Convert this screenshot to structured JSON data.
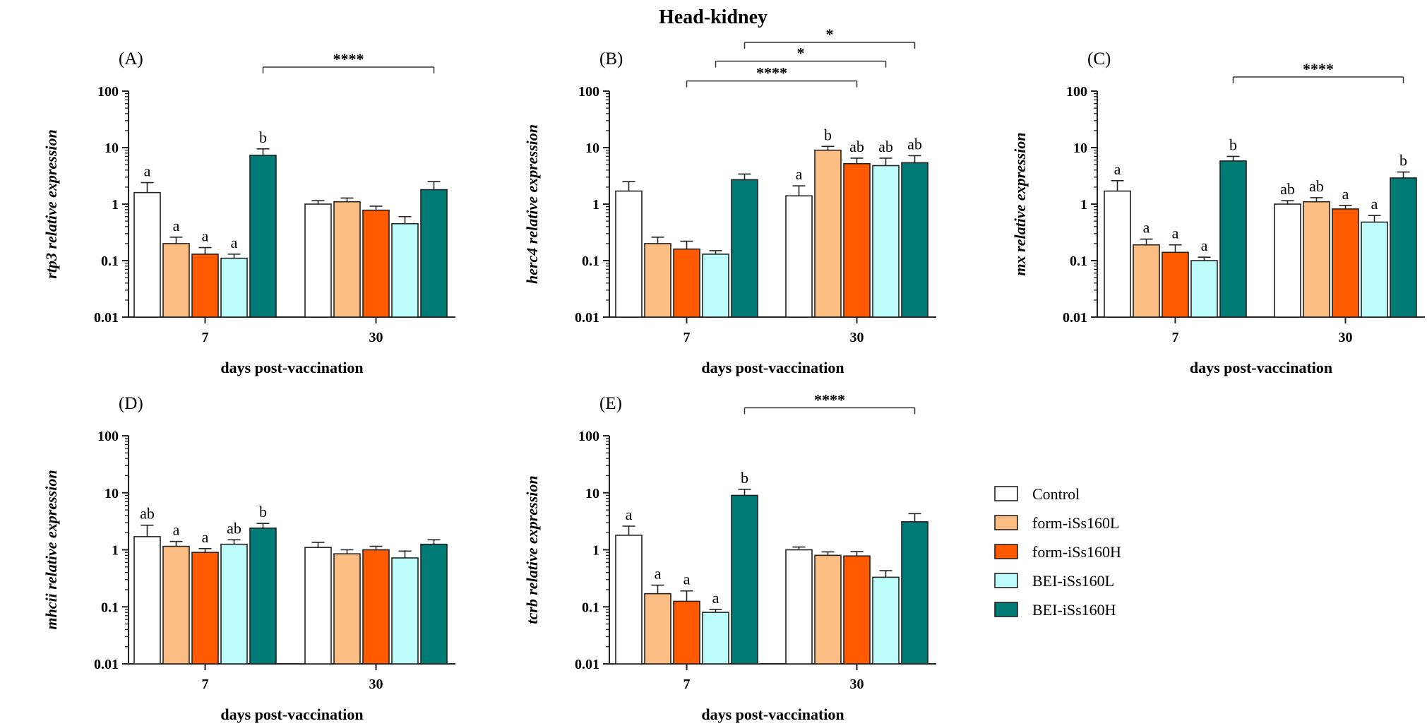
{
  "title": "Head-kidney",
  "legend": [
    {
      "label": "Control",
      "color": "#ffffff"
    },
    {
      "label": "form-iSs160L",
      "color": "#fbbd82"
    },
    {
      "label": "form-iSs160H",
      "color": "#ff5a00"
    },
    {
      "label": "BEI-iSs160L",
      "color": "#bdfdfb"
    },
    {
      "label": "BEI-iSs160H",
      "color": "#007a74"
    }
  ],
  "chart_data": [
    {
      "type": "bar",
      "panel": "(A)",
      "gene": "rtp3",
      "ylabel_rest": " relative expression",
      "xlabel": "days post-vaccination",
      "categories": [
        "7",
        "30"
      ],
      "yscale": "log",
      "ylim": [
        0.01,
        100
      ],
      "yticks": [
        "0.01",
        "0.1",
        "1",
        "10",
        "100"
      ],
      "series": [
        {
          "name": "Control",
          "values": [
            1.6,
            1.0
          ],
          "err_top": [
            2.4,
            1.15
          ],
          "letters": [
            "a",
            ""
          ]
        },
        {
          "name": "form-iSs160L",
          "values": [
            0.2,
            1.1
          ],
          "err_top": [
            0.26,
            1.28
          ],
          "letters": [
            "a",
            ""
          ]
        },
        {
          "name": "form-iSs160H",
          "values": [
            0.13,
            0.78
          ],
          "err_top": [
            0.17,
            0.92
          ],
          "letters": [
            "a",
            ""
          ]
        },
        {
          "name": "BEI-iSs160L",
          "values": [
            0.11,
            0.45
          ],
          "err_top": [
            0.13,
            0.6
          ],
          "letters": [
            "a",
            ""
          ]
        },
        {
          "name": "BEI-iSs160H",
          "values": [
            7.3,
            1.8
          ],
          "err_top": [
            9.5,
            2.5
          ],
          "letters": [
            "b",
            ""
          ]
        }
      ],
      "significance": [
        {
          "label": "****",
          "from": [
            0,
            4
          ],
          "to": [
            1,
            4
          ],
          "level": 0.7
        }
      ]
    },
    {
      "type": "bar",
      "panel": "(B)",
      "gene": "herc4",
      "ylabel_rest": " relative expression",
      "xlabel": "days post-vaccination",
      "categories": [
        "7",
        "30"
      ],
      "yscale": "log",
      "ylim": [
        0.01,
        100
      ],
      "yticks": [
        "0.01",
        "0.1",
        "1",
        "10",
        "100"
      ],
      "series": [
        {
          "name": "Control",
          "values": [
            1.7,
            1.4
          ],
          "err_top": [
            2.5,
            2.1
          ],
          "letters": [
            "",
            "a"
          ]
        },
        {
          "name": "form-iSs160L",
          "values": [
            0.2,
            9.0
          ],
          "err_top": [
            0.26,
            10.5
          ],
          "letters": [
            "",
            "b"
          ]
        },
        {
          "name": "form-iSs160H",
          "values": [
            0.16,
            5.2
          ],
          "err_top": [
            0.22,
            6.5
          ],
          "letters": [
            "",
            "ab"
          ]
        },
        {
          "name": "BEI-iSs160L",
          "values": [
            0.13,
            4.8
          ],
          "err_top": [
            0.15,
            6.5
          ],
          "letters": [
            "",
            "ab"
          ]
        },
        {
          "name": "BEI-iSs160H",
          "values": [
            2.7,
            5.4
          ],
          "err_top": [
            3.4,
            7.2
          ],
          "letters": [
            "",
            "ab"
          ]
        }
      ],
      "significance": [
        {
          "label": "*",
          "from": [
            0,
            4
          ],
          "to": [
            1,
            4
          ],
          "level": 1.2
        },
        {
          "label": "*",
          "from": [
            0,
            3
          ],
          "to": [
            1,
            3
          ],
          "level": 0.82
        },
        {
          "label": "****",
          "from": [
            0,
            2
          ],
          "to": [
            1,
            2
          ],
          "level": 0.42
        }
      ]
    },
    {
      "type": "bar",
      "panel": "(C)",
      "gene": "mx",
      "ylabel_rest": " relative expression",
      "xlabel": "days post-vaccination",
      "categories": [
        "7",
        "30"
      ],
      "yscale": "log",
      "ylim": [
        0.01,
        100
      ],
      "yticks": [
        "0.01",
        "0.1",
        "1",
        "10",
        "100"
      ],
      "series": [
        {
          "name": "Control",
          "values": [
            1.7,
            1.0
          ],
          "err_top": [
            2.6,
            1.15
          ],
          "letters": [
            "a",
            "ab"
          ]
        },
        {
          "name": "form-iSs160L",
          "values": [
            0.19,
            1.1
          ],
          "err_top": [
            0.24,
            1.3
          ],
          "letters": [
            "a",
            "ab"
          ]
        },
        {
          "name": "form-iSs160H",
          "values": [
            0.14,
            0.82
          ],
          "err_top": [
            0.19,
            0.95
          ],
          "letters": [
            "a",
            "a"
          ]
        },
        {
          "name": "BEI-iSs160L",
          "values": [
            0.1,
            0.48
          ],
          "err_top": [
            0.115,
            0.63
          ],
          "letters": [
            "a",
            "a"
          ]
        },
        {
          "name": "BEI-iSs160H",
          "values": [
            5.8,
            2.9
          ],
          "err_top": [
            7.0,
            3.7
          ],
          "letters": [
            "b",
            "b"
          ]
        }
      ],
      "significance": [
        {
          "label": "****",
          "from": [
            0,
            4
          ],
          "to": [
            1,
            4
          ],
          "level": 0.5
        }
      ]
    },
    {
      "type": "bar",
      "panel": "(D)",
      "gene": "mhcii",
      "ylabel_rest": " relative expression",
      "xlabel": "days post-vaccination",
      "categories": [
        "7",
        "30"
      ],
      "yscale": "log",
      "ylim": [
        0.01,
        100
      ],
      "yticks": [
        "0.01",
        "0.1",
        "1",
        "10",
        "100"
      ],
      "series": [
        {
          "name": "Control",
          "values": [
            1.7,
            1.1
          ],
          "err_top": [
            2.7,
            1.35
          ],
          "letters": [
            "ab",
            ""
          ]
        },
        {
          "name": "form-iSs160L",
          "values": [
            1.15,
            0.85
          ],
          "err_top": [
            1.4,
            1.0
          ],
          "letters": [
            "a",
            ""
          ]
        },
        {
          "name": "form-iSs160H",
          "values": [
            0.9,
            1.0
          ],
          "err_top": [
            1.05,
            1.15
          ],
          "letters": [
            "a",
            ""
          ]
        },
        {
          "name": "BEI-iSs160L",
          "values": [
            1.25,
            0.72
          ],
          "err_top": [
            1.5,
            0.95
          ],
          "letters": [
            "ab",
            ""
          ]
        },
        {
          "name": "BEI-iSs160H",
          "values": [
            2.4,
            1.25
          ],
          "err_top": [
            2.9,
            1.5
          ],
          "letters": [
            "b",
            ""
          ]
        }
      ],
      "significance": []
    },
    {
      "type": "bar",
      "panel": "(E)",
      "gene": "tcrb",
      "ylabel_rest": " relative expression",
      "xlabel": "days post-vaccination",
      "categories": [
        "7",
        "30"
      ],
      "yscale": "log",
      "ylim": [
        0.01,
        100
      ],
      "yticks": [
        "0.01",
        "0.1",
        "1",
        "10",
        "100"
      ],
      "series": [
        {
          "name": "Control",
          "values": [
            1.8,
            1.0
          ],
          "err_top": [
            2.6,
            1.12
          ],
          "letters": [
            "a",
            ""
          ]
        },
        {
          "name": "form-iSs160L",
          "values": [
            0.17,
            0.8
          ],
          "err_top": [
            0.24,
            0.92
          ],
          "letters": [
            "a",
            ""
          ]
        },
        {
          "name": "form-iSs160H",
          "values": [
            0.125,
            0.78
          ],
          "err_top": [
            0.19,
            0.93
          ],
          "letters": [
            "a",
            ""
          ]
        },
        {
          "name": "BEI-iSs160L",
          "values": [
            0.08,
            0.33
          ],
          "err_top": [
            0.09,
            0.43
          ],
          "letters": [
            "a",
            ""
          ]
        },
        {
          "name": "BEI-iSs160H",
          "values": [
            9.0,
            3.1
          ],
          "err_top": [
            11.5,
            4.3
          ],
          "letters": [
            "b",
            ""
          ]
        }
      ],
      "significance": [
        {
          "label": "****",
          "from": [
            0,
            4
          ],
          "to": [
            1,
            4
          ],
          "level": 0.78
        }
      ]
    }
  ]
}
